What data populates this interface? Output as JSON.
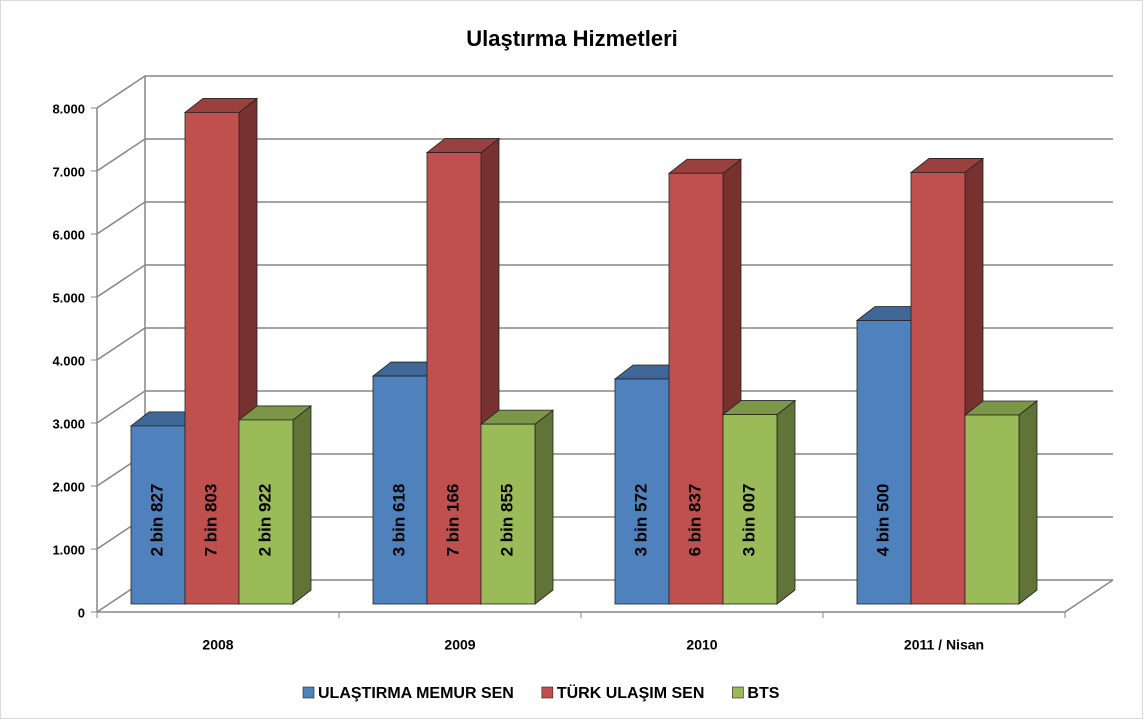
{
  "chart_data": {
    "type": "bar3d",
    "title": "Ulaştırma Hizmetleri",
    "categories": [
      "2008",
      "2009",
      "2010",
      "2011 / Nisan"
    ],
    "series": [
      {
        "name": "ULAŞTIRMA MEMUR SEN",
        "color": "#4f81bd",
        "values": [
          2827,
          3618,
          3572,
          4500
        ],
        "value_labels": [
          "2 bin 827",
          "3 bin 618",
          "3 bin 572",
          "4 bin 500"
        ]
      },
      {
        "name": "TÜRK ULAŞIM SEN",
        "color": "#c0504d",
        "values": [
          7803,
          7166,
          6837,
          6850
        ],
        "value_labels": [
          "7 bin 803",
          "7 bin 166",
          "6 bin 837",
          null
        ]
      },
      {
        "name": "BTS",
        "color": "#9bbb59",
        "values": [
          2922,
          2855,
          3007,
          3000
        ],
        "value_labels": [
          "2 bin 922",
          "2 bin 855",
          "3 bin 007",
          null
        ]
      }
    ],
    "ylim": [
      0,
      8000
    ],
    "yticks": [
      0,
      {
        "value": 1000,
        "label": "1.000"
      },
      {
        "value": 2000,
        "label": "2.000"
      },
      {
        "value": 3000,
        "label": "3.000"
      },
      {
        "value": 4000,
        "label": "4.000"
      },
      {
        "value": 5000,
        "label": "5.000"
      },
      {
        "value": 6000,
        "label": "6.000"
      },
      {
        "value": 7000,
        "label": "7.000"
      },
      {
        "value": 8000,
        "label": "8.000"
      }
    ],
    "grid": true,
    "legend": "bottom"
  }
}
